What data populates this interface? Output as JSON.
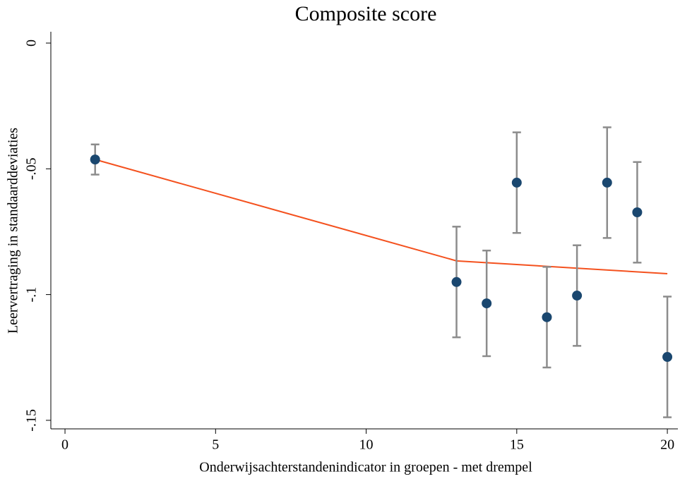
{
  "chart_data": {
    "type": "scatter",
    "title": "Composite score",
    "x_label": "Onderwijsachterstandenindicator in groepen - met drempel",
    "y_label": "Leervertraging in standaarddeviaties",
    "xlim": [
      -0.47,
      20.35
    ],
    "ylim": [
      -0.1534,
      0.0045
    ],
    "xticks": [
      0,
      5,
      10,
      15,
      20
    ],
    "yticks": [
      {
        "value": 0,
        "label": "0"
      },
      {
        "value": -0.05,
        "label": "-.05"
      },
      {
        "value": -0.1,
        "label": "-.1"
      },
      {
        "value": -0.15,
        "label": "-.15"
      }
    ],
    "points": {
      "color": "#1a476f",
      "error_color": "#8c8c8c",
      "x": [
        1,
        13,
        14,
        15,
        16,
        17,
        18,
        19,
        20
      ],
      "values": [
        -0.0463,
        -0.095,
        -0.1035,
        -0.0555,
        -0.109,
        -0.1004,
        -0.0555,
        -0.0673,
        -0.1248
      ],
      "errors": [
        0.006,
        0.022,
        0.021,
        0.02,
        0.02,
        0.02,
        0.022,
        0.02,
        0.024
      ]
    },
    "fit": {
      "color": "#f4511e",
      "x": [
        1,
        13,
        20
      ],
      "values": [
        -0.0463,
        -0.0866,
        -0.0917
      ]
    }
  }
}
